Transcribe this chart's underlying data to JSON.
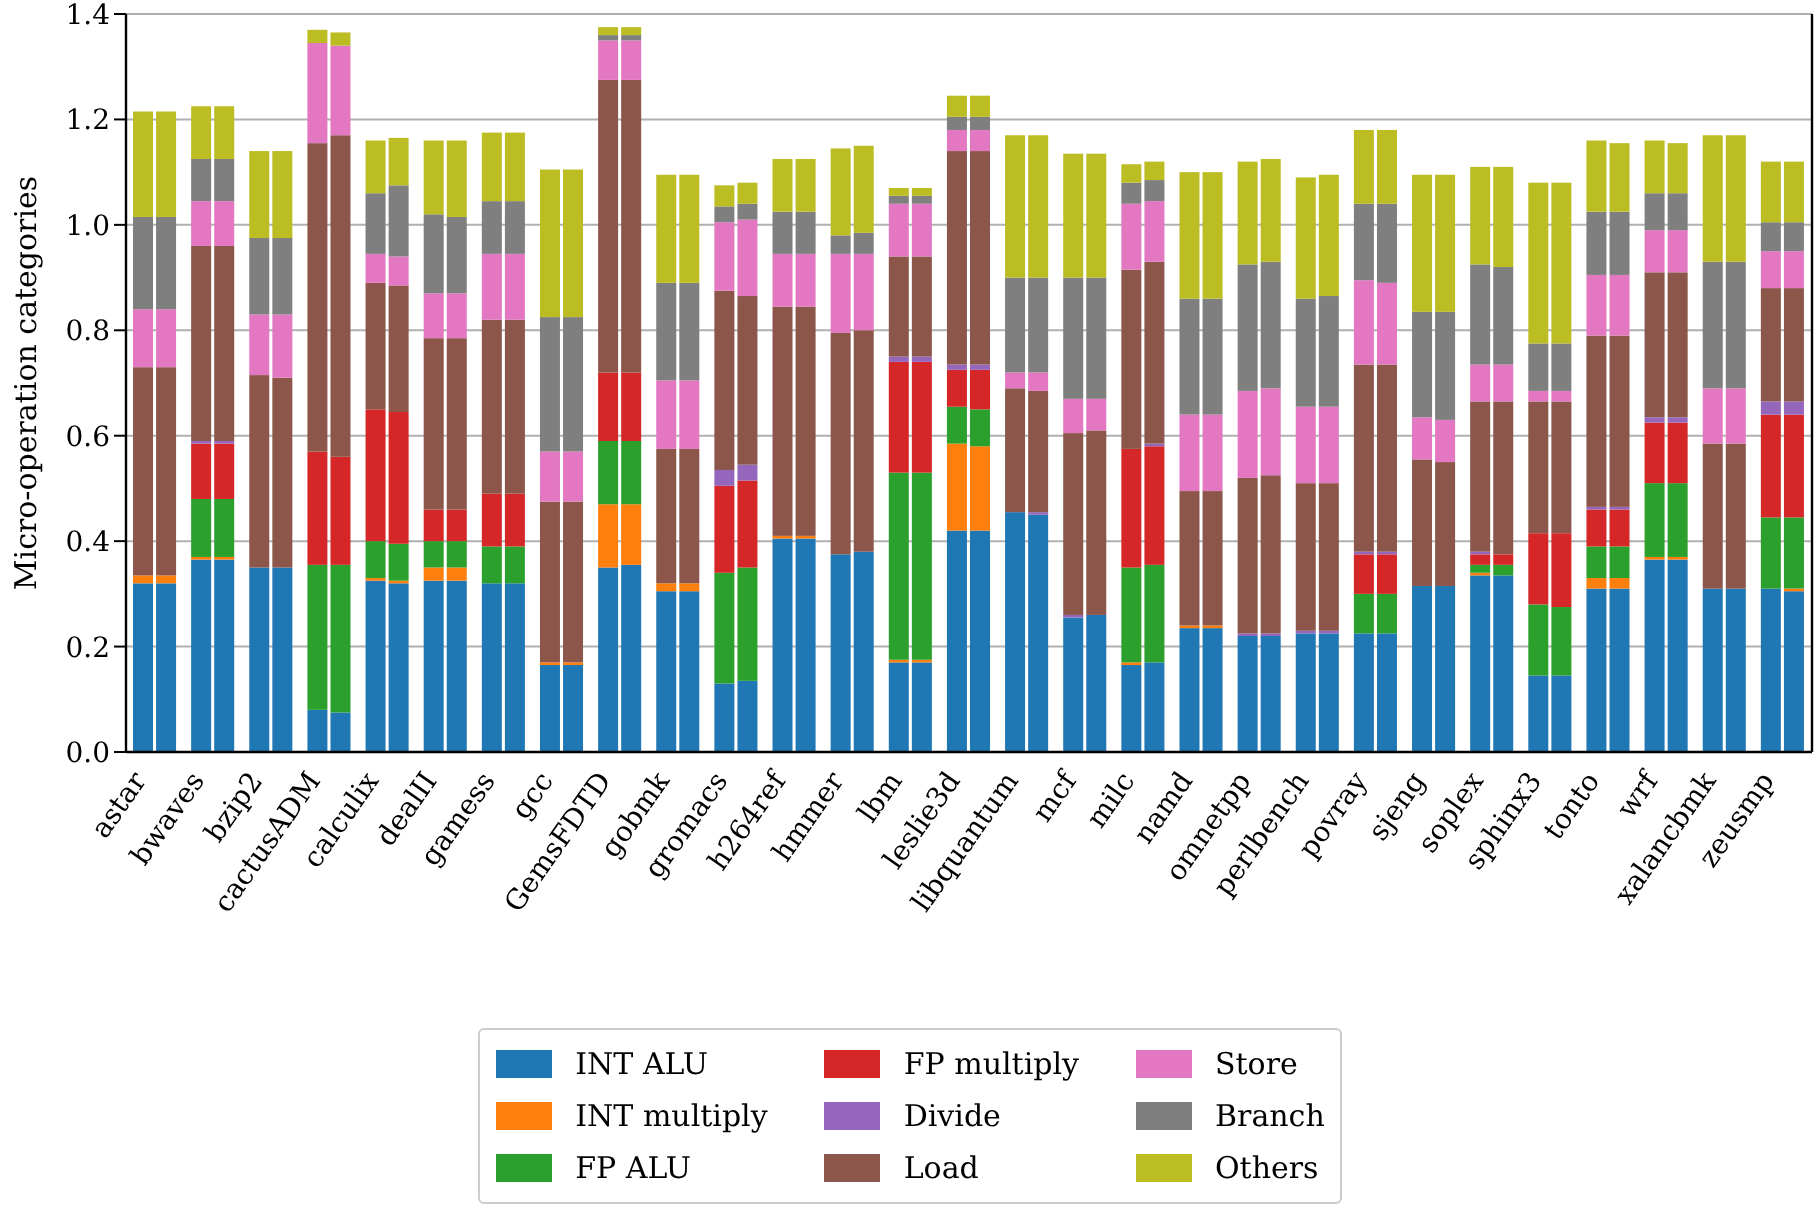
{
  "chart_data": {
    "type": "bar",
    "stacked": true,
    "ylabel": "Micro-operation categories",
    "grid": "y",
    "legend": "bottom",
    "categories": [
      "astar",
      null,
      "bwaves",
      null,
      "bzip2",
      null,
      "cactusADM",
      null,
      "calculix",
      null,
      "dealII",
      null,
      "gamess",
      null,
      "gcc",
      null,
      "GemsFDTD",
      null,
      "gobmk",
      null,
      "gromacs",
      null,
      "h264ref",
      null,
      "hmmer",
      null,
      "lbm",
      null,
      "leslie3d",
      null,
      "libquantum",
      null,
      "mcf",
      null,
      "milc",
      null,
      "namd",
      null,
      "omnetpp",
      null,
      "perlbench",
      null,
      "povray",
      null,
      "sjeng",
      null,
      "soplex",
      null,
      "sphinx3",
      null,
      "tonto",
      null,
      "wrf",
      null,
      "xalancbmk",
      null,
      "zeusmp",
      null
    ],
    "ylim": [
      0,
      1.4
    ],
    "yticks": [
      {
        "value": 0,
        "label": "0.0"
      },
      {
        "value": 0.2,
        "label": "0.2"
      },
      {
        "value": 0.4,
        "label": "0.4"
      },
      {
        "value": 0.6,
        "label": "0.6"
      },
      {
        "value": 0.8,
        "label": "0.8"
      },
      {
        "value": 1,
        "label": "1.0"
      },
      {
        "value": 1.2,
        "label": "1.2"
      },
      {
        "value": 1.4,
        "label": "1.4"
      }
    ],
    "series": [
      {
        "name": "INT ALU",
        "color": "#1f77b4",
        "values": [
          0.32,
          0.32,
          0.365,
          0.365,
          0.35,
          0.35,
          0.08,
          0.075,
          0.325,
          0.32,
          0.325,
          0.325,
          0.32,
          0.32,
          0.165,
          0.165,
          0.35,
          0.355,
          0.305,
          0.305,
          0.13,
          0.135,
          0.405,
          0.405,
          0.375,
          0.38,
          0.17,
          0.17,
          0.42,
          0.42,
          0.455,
          0.45,
          0.255,
          0.26,
          0.165,
          0.17,
          0.235,
          0.235,
          0.22,
          0.22,
          0.225,
          0.225,
          0.225,
          0.225,
          0.315,
          0.315,
          0.335,
          0.335,
          0.145,
          0.145,
          0.31,
          0.31,
          0.365,
          0.365,
          0.31,
          0.31,
          0.31,
          0.305
        ]
      },
      {
        "name": "INT multiply",
        "color": "#ff7f0e",
        "values": [
          0.015,
          0.015,
          0.005,
          0.005,
          0,
          0,
          0,
          0,
          0.005,
          0.005,
          0.025,
          0.025,
          0,
          0,
          0.005,
          0.005,
          0.12,
          0.115,
          0.015,
          0.015,
          0,
          0,
          0.005,
          0.005,
          0,
          0,
          0.005,
          0.005,
          0.165,
          0.16,
          0,
          0,
          0,
          0,
          0.005,
          0,
          0.005,
          0.005,
          0,
          0,
          0,
          0,
          0,
          0,
          0,
          0,
          0.005,
          0,
          0,
          0,
          0.02,
          0.02,
          0.005,
          0.005,
          0,
          0,
          0,
          0.005
        ]
      },
      {
        "name": "FP ALU",
        "color": "#2ca02c",
        "values": [
          0,
          0,
          0.11,
          0.11,
          0,
          0,
          0.275,
          0.28,
          0.07,
          0.07,
          0.05,
          0.05,
          0.07,
          0.07,
          0,
          0,
          0.12,
          0.12,
          0,
          0,
          0.21,
          0.215,
          0,
          0,
          0,
          0,
          0.355,
          0.355,
          0.07,
          0.07,
          0,
          0,
          0,
          0,
          0.18,
          0.185,
          0,
          0,
          0,
          0,
          0,
          0,
          0.075,
          0.075,
          0,
          0,
          0.015,
          0.02,
          0.135,
          0.13,
          0.06,
          0.06,
          0.14,
          0.14,
          0,
          0,
          0.135,
          0.135
        ]
      },
      {
        "name": "FP multiply",
        "color": "#d62728",
        "values": [
          0,
          0,
          0.105,
          0.105,
          0,
          0,
          0.215,
          0.205,
          0.25,
          0.25,
          0.06,
          0.06,
          0.1,
          0.1,
          0,
          0,
          0.13,
          0.13,
          0,
          0,
          0.165,
          0.165,
          0,
          0,
          0,
          0,
          0.21,
          0.21,
          0.07,
          0.075,
          0,
          0,
          0,
          0,
          0.225,
          0.225,
          0,
          0,
          0,
          0,
          0,
          0,
          0.075,
          0.075,
          0,
          0,
          0.02,
          0.02,
          0.135,
          0.14,
          0.07,
          0.07,
          0.115,
          0.115,
          0,
          0,
          0.195,
          0.195
        ]
      },
      {
        "name": "Divide",
        "color": "#9467bd",
        "values": [
          0,
          0,
          0.005,
          0.005,
          0,
          0,
          0,
          0,
          0,
          0,
          0,
          0,
          0,
          0,
          0,
          0,
          0,
          0,
          0,
          0,
          0.03,
          0.03,
          0,
          0,
          0,
          0,
          0.01,
          0.01,
          0.01,
          0.01,
          0,
          0.005,
          0.005,
          0,
          0,
          0.005,
          0,
          0,
          0.005,
          0.005,
          0.005,
          0.005,
          0.005,
          0.005,
          0,
          0,
          0.005,
          0,
          0,
          0,
          0.005,
          0.005,
          0.01,
          0.01,
          0,
          0,
          0.025,
          0.025
        ]
      },
      {
        "name": "Load",
        "color": "#8c564b",
        "values": [
          0.395,
          0.395,
          0.37,
          0.37,
          0.365,
          0.36,
          0.585,
          0.61,
          0.24,
          0.24,
          0.325,
          0.325,
          0.33,
          0.33,
          0.305,
          0.305,
          0.555,
          0.555,
          0.255,
          0.255,
          0.34,
          0.32,
          0.435,
          0.435,
          0.42,
          0.42,
          0.19,
          0.19,
          0.405,
          0.405,
          0.235,
          0.23,
          0.345,
          0.35,
          0.34,
          0.345,
          0.255,
          0.255,
          0.295,
          0.3,
          0.28,
          0.28,
          0.355,
          0.355,
          0.24,
          0.235,
          0.285,
          0.29,
          0.25,
          0.25,
          0.325,
          0.325,
          0.275,
          0.275,
          0.275,
          0.275,
          0.215,
          0.215
        ]
      },
      {
        "name": "Store",
        "color": "#e377c2",
        "values": [
          0.11,
          0.11,
          0.085,
          0.085,
          0.115,
          0.12,
          0.19,
          0.17,
          0.055,
          0.055,
          0.085,
          0.085,
          0.125,
          0.125,
          0.095,
          0.095,
          0.075,
          0.075,
          0.13,
          0.13,
          0.13,
          0.145,
          0.1,
          0.1,
          0.15,
          0.145,
          0.1,
          0.1,
          0.04,
          0.04,
          0.03,
          0.035,
          0.065,
          0.06,
          0.125,
          0.115,
          0.145,
          0.145,
          0.165,
          0.165,
          0.145,
          0.145,
          0.16,
          0.155,
          0.08,
          0.08,
          0.07,
          0.07,
          0.02,
          0.02,
          0.115,
          0.115,
          0.08,
          0.08,
          0.105,
          0.105,
          0.07,
          0.07
        ]
      },
      {
        "name": "Branch",
        "color": "#7f7f7f",
        "values": [
          0.175,
          0.175,
          0.08,
          0.08,
          0.145,
          0.145,
          0,
          0,
          0.115,
          0.135,
          0.15,
          0.145,
          0.1,
          0.1,
          0.255,
          0.255,
          0.01,
          0.01,
          0.185,
          0.185,
          0.03,
          0.03,
          0.08,
          0.08,
          0.035,
          0.04,
          0.015,
          0.015,
          0.025,
          0.025,
          0.18,
          0.18,
          0.23,
          0.23,
          0.04,
          0.04,
          0.22,
          0.22,
          0.24,
          0.24,
          0.205,
          0.21,
          0.145,
          0.15,
          0.2,
          0.205,
          0.19,
          0.185,
          0.09,
          0.09,
          0.12,
          0.12,
          0.07,
          0.07,
          0.24,
          0.24,
          0.055,
          0.055
        ]
      },
      {
        "name": "Others",
        "color": "#bcbd22",
        "values": [
          0.2,
          0.2,
          0.1,
          0.1,
          0.165,
          0.165,
          0.025,
          0.025,
          0.1,
          0.09,
          0.14,
          0.145,
          0.13,
          0.13,
          0.28,
          0.28,
          0.015,
          0.015,
          0.205,
          0.205,
          0.04,
          0.04,
          0.1,
          0.1,
          0.165,
          0.165,
          0.015,
          0.015,
          0.04,
          0.04,
          0.27,
          0.27,
          0.235,
          0.235,
          0.035,
          0.035,
          0.24,
          0.24,
          0.195,
          0.195,
          0.23,
          0.23,
          0.14,
          0.14,
          0.26,
          0.26,
          0.185,
          0.19,
          0.305,
          0.305,
          0.135,
          0.13,
          0.1,
          0.095,
          0.24,
          0.24,
          0.115,
          0.115
        ]
      }
    ]
  }
}
